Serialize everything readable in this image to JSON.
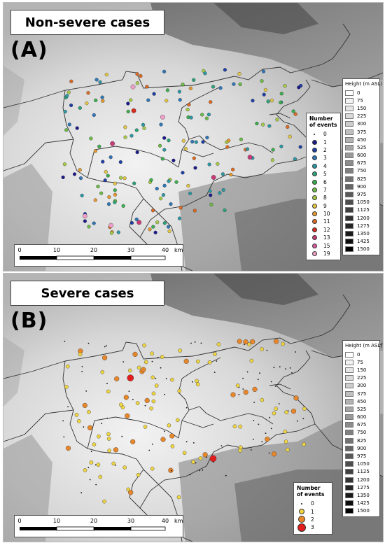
{
  "panels": [
    {
      "id": "A",
      "title": "Non-severe cases",
      "label": "(A)",
      "events_legend": {
        "title_line1": "Number",
        "title_line2": "of events",
        "items": [
          {
            "label": "0",
            "color": "#111111"
          },
          {
            "label": "1",
            "color": "#1a1a8c"
          },
          {
            "label": "2",
            "color": "#1f3fa8"
          },
          {
            "label": "3",
            "color": "#2f77b8"
          },
          {
            "label": "4",
            "color": "#2c9aa5"
          },
          {
            "label": "5",
            "color": "#2aa57a"
          },
          {
            "label": "6",
            "color": "#3bb04e"
          },
          {
            "label": "7",
            "color": "#6cbd45"
          },
          {
            "label": "8",
            "color": "#a6cc45"
          },
          {
            "label": "9",
            "color": "#e3c744"
          },
          {
            "label": "10",
            "color": "#e69a2f"
          },
          {
            "label": "11",
            "color": "#de6a22"
          },
          {
            "label": "12",
            "color": "#d42b1e"
          },
          {
            "label": "13",
            "color": "#c83a78"
          },
          {
            "label": "15",
            "color": "#d35a9d"
          },
          {
            "label": "19",
            "color": "#f0a0c8"
          }
        ]
      }
    },
    {
      "id": "B",
      "title": "Severe cases",
      "label": "(B)",
      "events_legend": {
        "title_line1": "Number",
        "title_line2": "of events",
        "items": [
          {
            "label": "0",
            "color": "#111111"
          },
          {
            "label": "1",
            "color": "#f0d640"
          },
          {
            "label": "2",
            "color": "#e8862a"
          },
          {
            "label": "3",
            "color": "#e21d1d"
          }
        ]
      }
    }
  ],
  "height_legend": {
    "title": "Height (m ASL)",
    "levels": [
      "0",
      "75",
      "150",
      "225",
      "300",
      "375",
      "450",
      "525",
      "600",
      "675",
      "750",
      "825",
      "900",
      "975",
      "1050",
      "1125",
      "1200",
      "1275",
      "1350",
      "1425",
      "1500"
    ]
  },
  "scale_bar": {
    "ticks": [
      "0",
      "10",
      "20",
      "30",
      "40"
    ],
    "unit": "km"
  }
}
